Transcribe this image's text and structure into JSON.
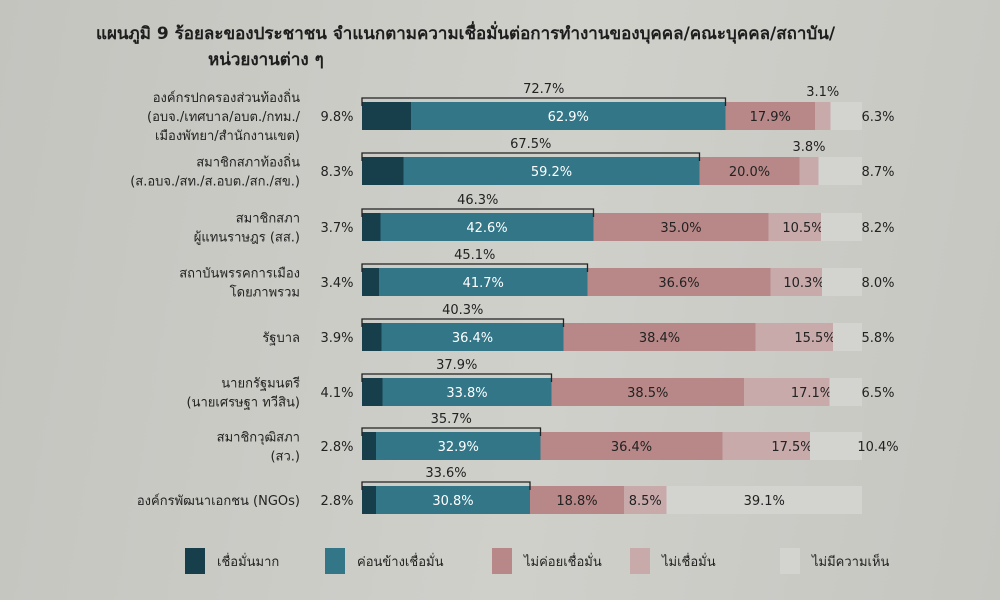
{
  "chart_data": {
    "type": "bar",
    "orientation": "horizontal",
    "stacked": true,
    "title": "แผนภูมิ 9 ร้อยละของประชาชน จำแนกตามความเชื่อมั่นต่อการทำงานของบุคคล/คณะบุคคล/สถาบัน/",
    "title_line2": "หน่วยงานต่าง ๆ",
    "categories": [
      [
        "องค์กรปกครองส่วนท้องถิ่น",
        "(อบจ./เทศบาล/อบต./กทม./",
        "เมืองพัทยา/สำนักงานเขต)"
      ],
      [
        "สมาชิกสภาท้องถิ่น",
        "(ส.อบจ./สท./ส.อบต./สก./สข.)"
      ],
      [
        "สมาชิกสภา",
        "ผู้แทนราษฎร (สส.)"
      ],
      [
        "สถาบันพรรคการเมือง",
        "โดยภาพรวม"
      ],
      [
        "รัฐบาล"
      ],
      [
        "นายกรัฐมนตรี",
        "(นายเศรษฐา ทวีสิน)"
      ],
      [
        "สมาชิกวุฒิสภา",
        "(สว.)"
      ],
      [
        "องค์กรพัฒนาเอกชน (NGOs)"
      ]
    ],
    "series": [
      {
        "name": "เชื่อมั่นมาก",
        "color": "#173f4b",
        "values": [
          9.8,
          8.3,
          3.7,
          3.4,
          3.9,
          4.1,
          2.8,
          2.8
        ]
      },
      {
        "name": "ค่อนข้างเชื่อมั่น",
        "color": "#327687",
        "values": [
          62.9,
          59.2,
          42.6,
          41.7,
          36.4,
          33.8,
          32.9,
          30.8
        ]
      },
      {
        "name": "ไม่ค่อยเชื่อมั่น",
        "color": "#b88888",
        "values": [
          17.9,
          20.0,
          35.0,
          36.6,
          38.4,
          38.5,
          36.4,
          18.8
        ]
      },
      {
        "name": "ไม่เชื่อมั่น",
        "color": "#c9aaab",
        "values": [
          3.1,
          3.8,
          10.5,
          10.3,
          15.5,
          17.1,
          17.5,
          8.5
        ]
      },
      {
        "name": "ไม่มีความเห็น",
        "color": "#d3d3cf",
        "values": [
          6.3,
          8.7,
          8.2,
          8.0,
          5.8,
          6.5,
          10.4,
          39.1
        ]
      }
    ],
    "confidence_totals": [
      72.7,
      67.5,
      46.3,
      45.1,
      40.3,
      37.9,
      35.7,
      33.6
    ],
    "xlim": [
      0,
      100
    ],
    "value_suffix": "%",
    "legend_position": "bottom"
  }
}
